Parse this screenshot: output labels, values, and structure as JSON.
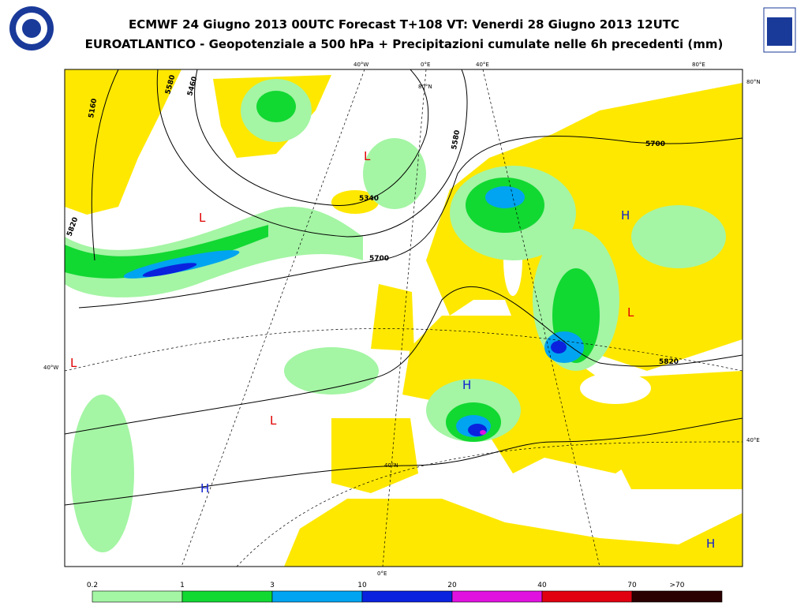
{
  "header": {
    "title1": "ECMWF 24 Giugno 2013 00UTC Forecast T+108 VT: Venerdi 28 Giugno 2013 12UTC",
    "title2": "EUROATLANTICO - Geopotenziale a 500 hPa + Precipitazioni cumulate nelle 6h precedenti (mm)"
  },
  "map": {
    "graticule_labels": [
      "40°W",
      "0°E",
      "40°E",
      "80°E",
      "80°N",
      "80°N",
      "40°W",
      "40°E",
      "0°E",
      "40°N"
    ],
    "contour_labels": [
      "5160",
      "5460",
      "5580",
      "5820",
      "5340",
      "5580",
      "5700",
      "5700",
      "5820"
    ],
    "centers": [
      "L",
      "L",
      "L",
      "L",
      "L",
      "H",
      "H",
      "H",
      "H"
    ]
  },
  "legend": {
    "labels": [
      "0.2",
      "1",
      "3",
      "10",
      "20",
      "40",
      "70",
      ">70"
    ],
    "colors": [
      "#a4f5a4",
      "#12d832",
      "#00a4f0",
      "#0a22de",
      "#e012e0",
      "#e00010",
      "#2a0000"
    ]
  }
}
